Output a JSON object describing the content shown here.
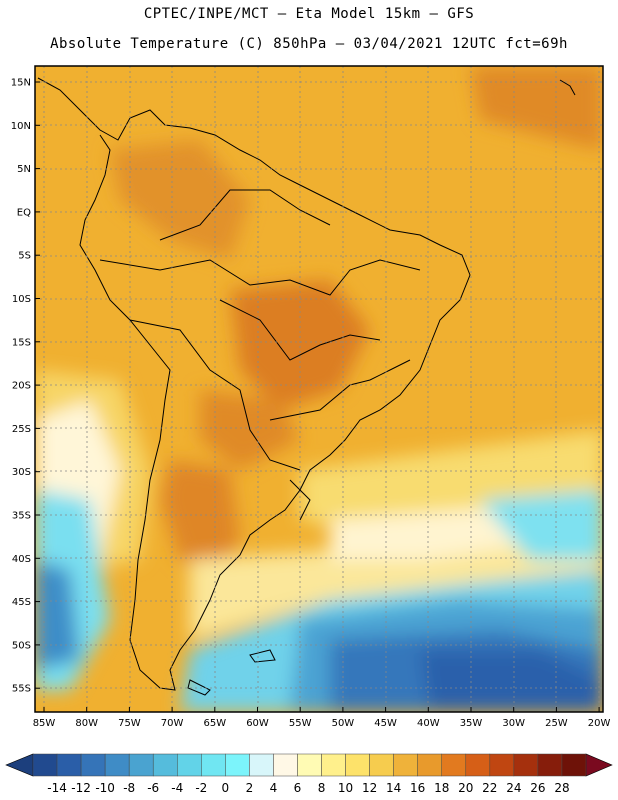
{
  "header": {
    "line1": "CPTEC/INPE/MCT –  Eta Model 15km – GFS",
    "line2": "Absolute Temperature (C) 850hPa – 03/04/2021 12UTC fct=69h"
  },
  "map": {
    "lat_labels": [
      "15N",
      "10N",
      "5N",
      "EQ",
      "5S",
      "10S",
      "15S",
      "20S",
      "25S",
      "30S",
      "35S",
      "40S",
      "45S",
      "50S",
      "55S"
    ],
    "lon_labels": [
      "85W",
      "80W",
      "75W",
      "70W",
      "65W",
      "60W",
      "55W",
      "50W",
      "45W",
      "40W",
      "35W",
      "30W",
      "25W",
      "20W"
    ],
    "lat_values": [
      15,
      10,
      5,
      0,
      -5,
      -10,
      -15,
      -20,
      -25,
      -30,
      -35,
      -40,
      -45,
      -50,
      -55
    ],
    "lon_values": [
      -85,
      -80,
      -75,
      -70,
      -65,
      -60,
      -55,
      -50,
      -45,
      -40,
      -35,
      -30,
      -25,
      -20
    ]
  },
  "colorbar": {
    "labels": [
      "-14",
      "-12",
      "-10",
      "-8",
      "-6",
      "-4",
      "-2",
      "0",
      "2",
      "4",
      "6",
      "8",
      "10",
      "12",
      "14",
      "16",
      "18",
      "20",
      "22",
      "24",
      "26",
      "28"
    ],
    "colors": [
      "#214a8f",
      "#2a5ea8",
      "#3574b8",
      "#3f8cc6",
      "#4aa3d0",
      "#55bcdc",
      "#62d3e8",
      "#70e6f2",
      "#7cf4fb",
      "#d8f6fa",
      "#fff8e6",
      "#fffbb4",
      "#fff08c",
      "#fde26a",
      "#f6cc4e",
      "#efb23a",
      "#e89a2c",
      "#e27a1f",
      "#d65f17",
      "#c04611",
      "#a5300d",
      "#861d0b",
      "#6e1208"
    ],
    "low_arrow_color": "#1c3f7d",
    "high_arrow_color": "#7a0a1f"
  }
}
